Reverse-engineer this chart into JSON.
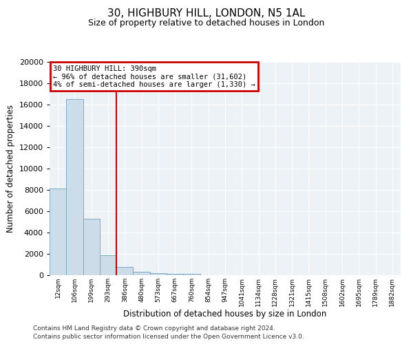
{
  "title": "30, HIGHBURY HILL, LONDON, N5 1AL",
  "subtitle": "Size of property relative to detached houses in London",
  "xlabel": "Distribution of detached houses by size in London",
  "ylabel": "Number of detached properties",
  "bar_heights": [
    8100,
    16500,
    5300,
    1850,
    800,
    300,
    200,
    150,
    100,
    0,
    0,
    0,
    0,
    0,
    0,
    0,
    0,
    0,
    0,
    0,
    0
  ],
  "bar_labels": [
    "12sqm",
    "106sqm",
    "199sqm",
    "293sqm",
    "386sqm",
    "480sqm",
    "573sqm",
    "667sqm",
    "760sqm",
    "854sqm",
    "947sqm",
    "1041sqm",
    "1134sqm",
    "1228sqm",
    "1321sqm",
    "1415sqm",
    "1508sqm",
    "1602sqm",
    "1695sqm",
    "1789sqm",
    "1882sqm"
  ],
  "ylim": [
    0,
    20000
  ],
  "yticks": [
    0,
    2000,
    4000,
    6000,
    8000,
    10000,
    12000,
    14000,
    16000,
    18000,
    20000
  ],
  "bar_color": "#ccdce8",
  "bar_edge_color": "#7aaac8",
  "vline_x_index": 4,
  "vline_color": "#cc0000",
  "annotation_title": "30 HIGHBURY HILL: 390sqm",
  "annotation_line1": "← 96% of detached houses are smaller (31,602)",
  "annotation_line2": "4% of semi-detached houses are larger (1,330) →",
  "annotation_box_edge_color": "#cc0000",
  "plot_bg_color": "#edf2f7",
  "grid_color": "#ffffff",
  "footer_line1": "Contains HM Land Registry data © Crown copyright and database right 2024.",
  "footer_line2": "Contains public sector information licensed under the Open Government Licence v3.0."
}
